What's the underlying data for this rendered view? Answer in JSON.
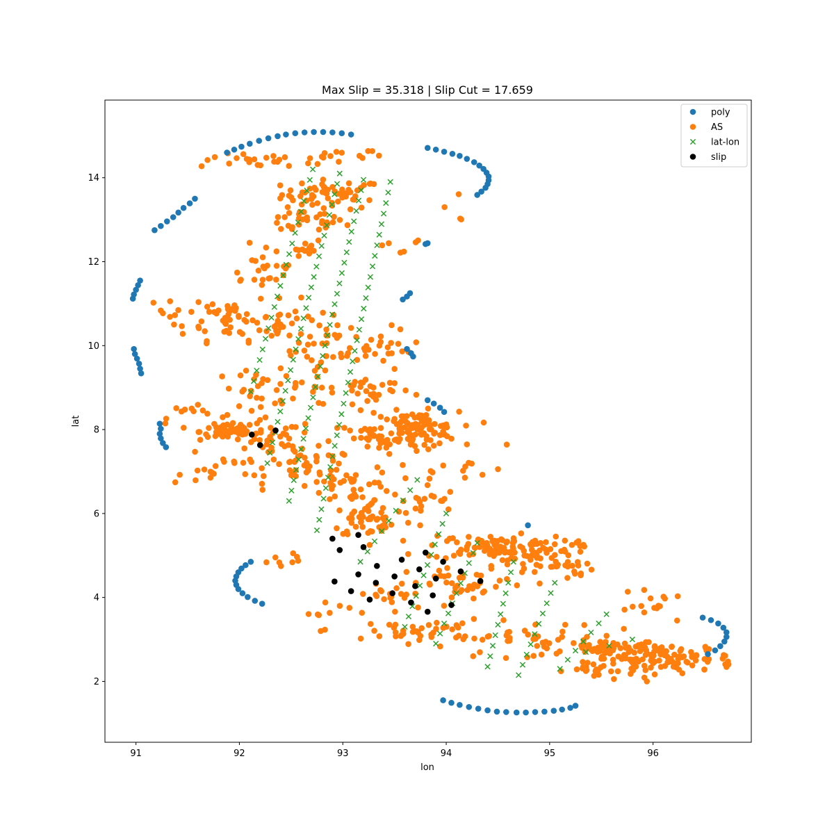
{
  "chart_data": {
    "type": "scatter",
    "title": "Max Slip = 35.318  |  Slip Cut = 17.659",
    "xlabel": "lon",
    "ylabel": "lat",
    "xlim": [
      90.7,
      96.95
    ],
    "ylim": [
      0.55,
      15.85
    ],
    "xticks": [
      91,
      92,
      93,
      94,
      95,
      96
    ],
    "yticks": [
      2,
      4,
      6,
      8,
      10,
      12,
      14
    ],
    "grid": false,
    "legend_position": "top-right",
    "colors": {
      "poly": "#1f77b4",
      "AS": "#ff7f0e",
      "lat-lon": "#2ca02c",
      "slip": "#000000"
    },
    "series": [
      {
        "name": "poly",
        "marker": "circle",
        "points": [
          [
            91.88,
            14.6
          ],
          [
            91.95,
            14.67
          ],
          [
            92.02,
            14.74
          ],
          [
            92.1,
            14.81
          ],
          [
            92.19,
            14.88
          ],
          [
            92.28,
            14.94
          ],
          [
            92.37,
            14.99
          ],
          [
            92.45,
            15.03
          ],
          [
            92.54,
            15.06
          ],
          [
            92.63,
            15.08
          ],
          [
            92.72,
            15.09
          ],
          [
            92.81,
            15.09
          ],
          [
            92.9,
            15.08
          ],
          [
            92.99,
            15.06
          ],
          [
            93.08,
            15.03
          ],
          [
            93.82,
            14.71
          ],
          [
            93.9,
            14.67
          ],
          [
            93.98,
            14.62
          ],
          [
            94.06,
            14.57
          ],
          [
            94.13,
            14.52
          ],
          [
            94.2,
            14.45
          ],
          [
            94.27,
            14.37
          ],
          [
            94.32,
            14.29
          ],
          [
            94.36,
            14.21
          ],
          [
            94.39,
            14.12
          ],
          [
            94.41,
            14.03
          ],
          [
            94.41,
            13.94
          ],
          [
            94.4,
            13.85
          ],
          [
            94.38,
            13.76
          ],
          [
            94.34,
            13.67
          ],
          [
            94.3,
            13.59
          ],
          [
            91.18,
            12.75
          ],
          [
            91.24,
            12.85
          ],
          [
            91.3,
            12.96
          ],
          [
            91.36,
            13.06
          ],
          [
            91.41,
            13.17
          ],
          [
            91.46,
            13.28
          ],
          [
            91.52,
            13.39
          ],
          [
            91.57,
            13.5
          ],
          [
            93.82,
            12.44
          ],
          [
            93.8,
            12.42
          ],
          [
            91.04,
            11.55
          ],
          [
            91.02,
            11.44
          ],
          [
            91.0,
            11.33
          ],
          [
            90.98,
            11.22
          ],
          [
            90.97,
            11.12
          ],
          [
            93.65,
            11.25
          ],
          [
            93.62,
            11.17
          ],
          [
            93.58,
            11.1
          ],
          [
            90.98,
            9.92
          ],
          [
            90.99,
            9.8
          ],
          [
            91.01,
            9.69
          ],
          [
            91.03,
            9.57
          ],
          [
            91.04,
            9.45
          ],
          [
            91.05,
            9.34
          ],
          [
            93.62,
            9.92
          ],
          [
            93.66,
            9.82
          ],
          [
            93.68,
            9.74
          ],
          [
            93.82,
            8.7
          ],
          [
            93.88,
            8.62
          ],
          [
            93.94,
            8.52
          ],
          [
            93.98,
            8.42
          ],
          [
            91.23,
            8.14
          ],
          [
            91.24,
            8.02
          ],
          [
            91.23,
            7.9
          ],
          [
            91.24,
            7.79
          ],
          [
            91.26,
            7.68
          ],
          [
            91.29,
            7.58
          ],
          [
            94.79,
            5.72
          ],
          [
            92.11,
            4.85
          ],
          [
            92.06,
            4.77
          ],
          [
            92.02,
            4.69
          ],
          [
            91.99,
            4.6
          ],
          [
            91.97,
            4.5
          ],
          [
            91.96,
            4.4
          ],
          [
            91.97,
            4.3
          ],
          [
            91.99,
            4.2
          ],
          [
            92.03,
            4.1
          ],
          [
            92.08,
            4.01
          ],
          [
            92.15,
            3.92
          ],
          [
            92.22,
            3.85
          ],
          [
            96.48,
            3.52
          ],
          [
            96.56,
            3.46
          ],
          [
            96.63,
            3.38
          ],
          [
            96.68,
            3.28
          ],
          [
            96.71,
            3.17
          ],
          [
            96.71,
            3.06
          ],
          [
            96.69,
            2.95
          ],
          [
            96.65,
            2.84
          ],
          [
            96.6,
            2.74
          ],
          [
            96.53,
            2.65
          ],
          [
            93.97,
            1.55
          ],
          [
            94.05,
            1.49
          ],
          [
            94.13,
            1.44
          ],
          [
            94.22,
            1.39
          ],
          [
            94.31,
            1.35
          ],
          [
            94.4,
            1.31
          ],
          [
            94.49,
            1.28
          ],
          [
            94.58,
            1.27
          ],
          [
            94.68,
            1.26
          ],
          [
            94.77,
            1.26
          ],
          [
            94.86,
            1.27
          ],
          [
            94.95,
            1.28
          ],
          [
            95.04,
            1.3
          ],
          [
            95.12,
            1.33
          ],
          [
            95.2,
            1.37
          ],
          [
            95.25,
            1.42
          ]
        ]
      },
      {
        "name": "AS",
        "marker": "circle",
        "clusters": [
          [
            92.9,
            13.6,
            0.35,
            0.25,
            60
          ],
          [
            92.6,
            12.95,
            0.3,
            0.2,
            30
          ],
          [
            92.3,
            14.4,
            0.5,
            0.12,
            25
          ],
          [
            92.5,
            12.3,
            0.25,
            0.2,
            15
          ],
          [
            92.2,
            11.8,
            0.3,
            0.3,
            20
          ],
          [
            91.9,
            10.7,
            0.3,
            0.4,
            40
          ],
          [
            92.4,
            10.5,
            0.35,
            0.4,
            35
          ],
          [
            92.9,
            10.0,
            0.4,
            0.4,
            30
          ],
          [
            93.4,
            9.9,
            0.25,
            0.3,
            20
          ],
          [
            92.2,
            9.0,
            0.3,
            0.3,
            25
          ],
          [
            92.7,
            9.0,
            0.3,
            0.3,
            20
          ],
          [
            91.9,
            7.95,
            0.2,
            0.15,
            50
          ],
          [
            92.3,
            7.7,
            0.3,
            0.4,
            40
          ],
          [
            92.7,
            7.1,
            0.3,
            0.3,
            40
          ],
          [
            93.1,
            6.7,
            0.3,
            0.3,
            35
          ],
          [
            93.7,
            8.0,
            0.3,
            0.3,
            110
          ],
          [
            93.3,
            7.8,
            0.3,
            0.3,
            30
          ],
          [
            93.3,
            5.85,
            0.3,
            0.3,
            50
          ],
          [
            93.7,
            6.3,
            0.3,
            0.3,
            20
          ],
          [
            94.5,
            5.2,
            0.5,
            0.2,
            110
          ],
          [
            95.0,
            4.8,
            0.3,
            0.3,
            40
          ],
          [
            94.2,
            4.3,
            0.4,
            0.3,
            40
          ],
          [
            93.5,
            4.0,
            0.3,
            0.3,
            20
          ],
          [
            93.8,
            3.2,
            0.4,
            0.2,
            40
          ],
          [
            94.8,
            3.0,
            0.5,
            0.3,
            40
          ],
          [
            95.4,
            2.3,
            0.3,
            0.1,
            15
          ],
          [
            96.1,
            2.55,
            0.5,
            0.25,
            120
          ],
          [
            95.6,
            2.75,
            0.3,
            0.2,
            40
          ],
          [
            92.8,
            3.7,
            0.2,
            0.3,
            10
          ],
          [
            92.4,
            4.9,
            0.15,
            0.15,
            8
          ],
          [
            91.8,
            7.0,
            0.3,
            0.3,
            20
          ],
          [
            91.6,
            8.3,
            0.3,
            0.3,
            15
          ],
          [
            93.3,
            8.9,
            0.25,
            0.3,
            25
          ],
          [
            93.0,
            14.6,
            0.3,
            0.15,
            10
          ],
          [
            91.4,
            10.8,
            0.2,
            0.3,
            10
          ],
          [
            96.0,
            3.8,
            0.3,
            0.2,
            15
          ],
          [
            94.3,
            7.0,
            0.25,
            0.4,
            12
          ],
          [
            93.6,
            12.3,
            0.2,
            0.3,
            6
          ],
          [
            94.0,
            13.2,
            0.2,
            0.2,
            4
          ]
        ]
      },
      {
        "name": "lat-lon",
        "marker": "x",
        "columns": [
          [
            [
              92.71,
              14.2
            ],
            [
              92.11,
              8.9
            ]
          ],
          [
            [
              92.97,
              14.1
            ],
            [
              92.27,
              7.2
            ]
          ],
          [
            [
              93.2,
              13.95
            ],
            [
              92.48,
              6.3
            ]
          ],
          [
            [
              93.46,
              13.9
            ],
            [
              92.75,
              5.6
            ]
          ],
          [
            [
              93.72,
              6.8
            ],
            [
              93.17,
              4.85
            ]
          ],
          [
            [
              94.0,
              6.0
            ],
            [
              93.6,
              3.3
            ]
          ],
          [
            [
              94.3,
              5.3
            ],
            [
              93.9,
              2.9
            ]
          ],
          [
            [
              94.65,
              4.85
            ],
            [
              94.4,
              2.35
            ]
          ],
          [
            [
              95.05,
              4.35
            ],
            [
              94.7,
              2.15
            ]
          ],
          [
            [
              95.55,
              3.6
            ],
            [
              95.1,
              2.3
            ]
          ],
          [
            [
              95.8,
              3.0
            ],
            [
              95.35,
              2.7
            ]
          ]
        ],
        "rows": 24
      },
      {
        "name": "slip",
        "marker": "circle",
        "points": [
          [
            92.12,
            7.88
          ],
          [
            92.35,
            7.98
          ],
          [
            92.2,
            7.63
          ],
          [
            92.9,
            5.4
          ],
          [
            93.15,
            5.49
          ],
          [
            92.97,
            5.13
          ],
          [
            93.2,
            5.2
          ],
          [
            93.57,
            4.9
          ],
          [
            93.8,
            5.07
          ],
          [
            93.97,
            4.85
          ],
          [
            93.33,
            4.75
          ],
          [
            93.74,
            4.67
          ],
          [
            94.14,
            4.62
          ],
          [
            93.15,
            4.55
          ],
          [
            93.5,
            4.5
          ],
          [
            93.9,
            4.45
          ],
          [
            94.33,
            4.39
          ],
          [
            92.92,
            4.38
          ],
          [
            93.32,
            4.35
          ],
          [
            93.7,
            4.27
          ],
          [
            93.08,
            4.15
          ],
          [
            93.48,
            4.1
          ],
          [
            93.87,
            4.05
          ],
          [
            93.26,
            3.95
          ],
          [
            93.66,
            3.88
          ],
          [
            94.05,
            3.82
          ],
          [
            93.82,
            3.66
          ]
        ]
      }
    ]
  }
}
